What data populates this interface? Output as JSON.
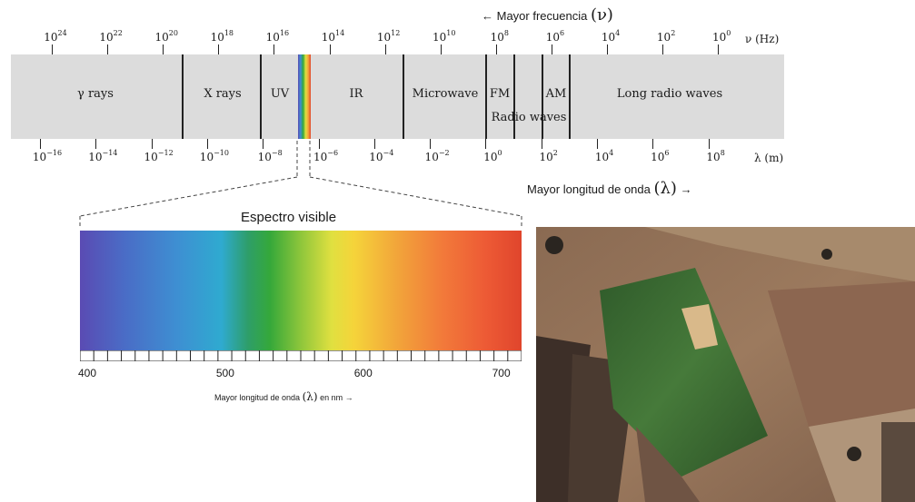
{
  "frequency_header": {
    "text": "Mayor frecuencia",
    "symbol": "(ν)"
  },
  "wavelength_header": {
    "text": "Mayor longitud de onda",
    "symbol": "(λ)"
  },
  "arrow_left": "←",
  "arrow_right": "→",
  "frequency_axis": {
    "unit_label": "ν (Hz)",
    "ticks": [
      {
        "base": "10",
        "exp": "24"
      },
      {
        "base": "10",
        "exp": "22"
      },
      {
        "base": "10",
        "exp": "20"
      },
      {
        "base": "10",
        "exp": "18"
      },
      {
        "base": "10",
        "exp": "16"
      },
      {
        "base": "10",
        "exp": "14"
      },
      {
        "base": "10",
        "exp": "12"
      },
      {
        "base": "10",
        "exp": "10"
      },
      {
        "base": "10",
        "exp": "8"
      },
      {
        "base": "10",
        "exp": "6"
      },
      {
        "base": "10",
        "exp": "4"
      },
      {
        "base": "10",
        "exp": "2"
      },
      {
        "base": "10",
        "exp": "0"
      }
    ]
  },
  "wavelength_axis": {
    "unit_label": "λ (m)",
    "ticks": [
      {
        "base": "10",
        "exp": "−16"
      },
      {
        "base": "10",
        "exp": "−14"
      },
      {
        "base": "10",
        "exp": "−12"
      },
      {
        "base": "10",
        "exp": "−10"
      },
      {
        "base": "10",
        "exp": "−8"
      },
      {
        "base": "10",
        "exp": "−6"
      },
      {
        "base": "10",
        "exp": "−4"
      },
      {
        "base": "10",
        "exp": "−2"
      },
      {
        "base": "10",
        "exp": "0"
      },
      {
        "base": "10",
        "exp": "2"
      },
      {
        "base": "10",
        "exp": "4"
      },
      {
        "base": "10",
        "exp": "6"
      },
      {
        "base": "10",
        "exp": "8"
      }
    ]
  },
  "bands": {
    "gamma": "γ rays",
    "xray": "X rays",
    "uv": "UV",
    "ir": "IR",
    "microwave": "Microwave",
    "fm": "FM",
    "am": "AM",
    "radio": "Radio waves",
    "long_radio": "Long radio waves"
  },
  "visible": {
    "title": "Espectro visible",
    "axis_labels": [
      "400",
      "500",
      "600",
      "700"
    ],
    "caption_prefix": "Mayor longitud de onda",
    "caption_symbol": "(λ)",
    "caption_suffix": "en  nm  →"
  },
  "photo": {
    "description_icon": "aerial-farmland-image"
  },
  "colors": {
    "band_bg": "#dcdcdc",
    "visible_start": "#5a4bb3",
    "visible_end": "#e0452c"
  }
}
